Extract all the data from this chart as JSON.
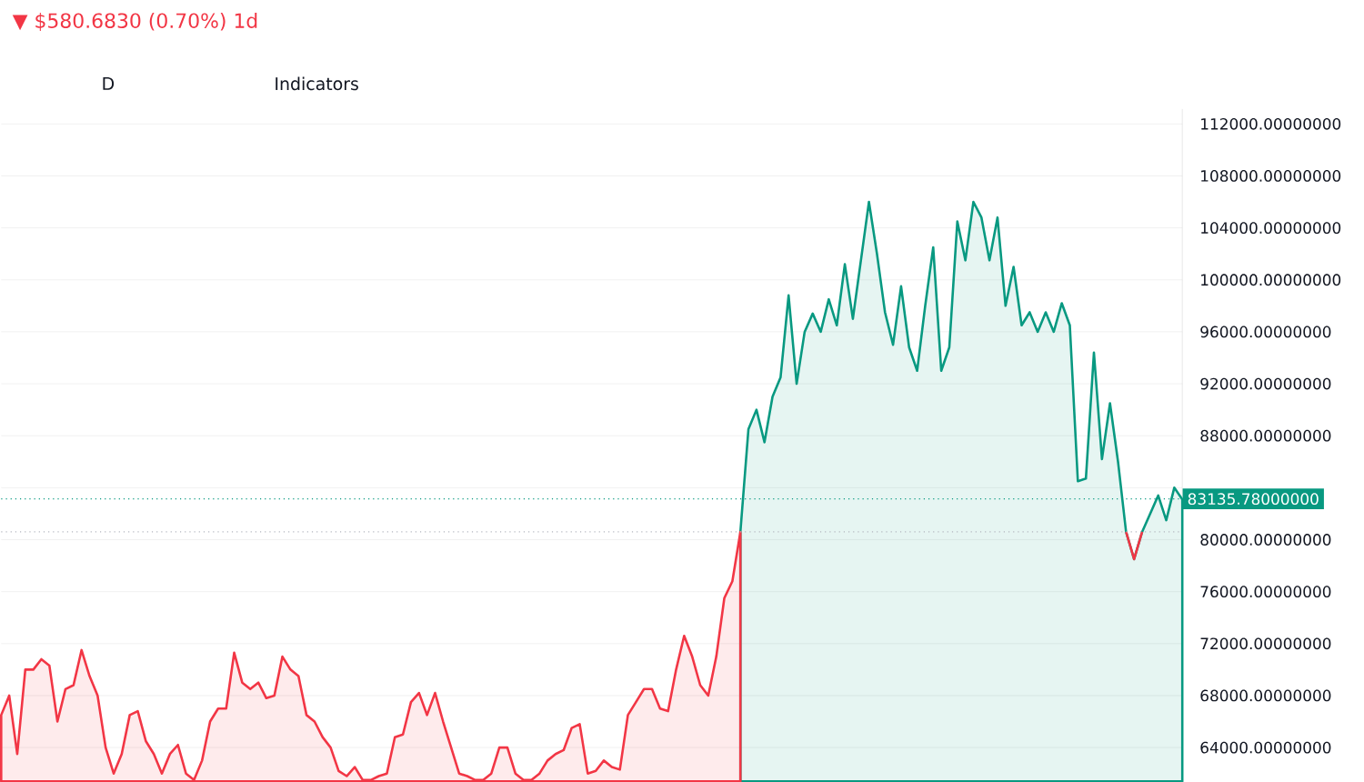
{
  "chart_data": {
    "type": "area",
    "annotations": [
      "▼ $580.6830 (0.70%) 1d",
      "D",
      "Indicators"
    ],
    "categories": [
      null,
      null,
      null,
      null,
      null,
      null,
      null,
      null,
      null,
      null,
      null,
      null,
      null,
      null,
      null,
      null,
      null,
      null,
      null,
      null,
      null,
      null,
      null,
      null,
      null,
      null,
      null,
      null,
      null,
      null,
      null,
      null,
      null,
      null,
      null,
      null,
      null,
      null,
      null,
      null,
      null,
      null,
      null,
      null,
      null,
      null,
      null,
      null,
      null,
      null,
      null,
      null,
      null,
      null,
      null,
      null,
      null,
      null,
      null,
      null,
      null,
      null,
      null,
      null,
      null,
      null,
      null,
      null,
      null,
      null,
      null,
      null,
      null,
      null,
      null,
      null,
      null,
      null,
      null,
      null,
      null,
      null,
      null,
      null,
      null,
      null,
      null,
      null,
      null,
      null,
      null,
      null,
      null,
      null,
      null,
      null,
      null,
      null,
      null,
      null,
      null,
      null,
      null,
      null,
      null,
      null,
      null,
      null,
      null,
      null,
      null,
      null,
      null,
      null,
      null,
      null,
      null,
      null,
      null,
      null,
      null,
      null,
      null,
      null,
      null,
      null,
      null,
      null,
      null,
      null,
      null,
      null,
      null,
      null,
      null,
      null,
      null,
      null,
      null,
      null,
      null,
      null,
      null,
      null,
      null,
      null,
      null,
      null
    ],
    "series": [
      {
        "color": "#f23645",
        "values": [
          66500,
          68000,
          63500,
          70000,
          70000,
          70800,
          70300,
          66000,
          68500,
          68800,
          71500,
          69500,
          68000,
          64000,
          62000,
          63500,
          66500,
          66800,
          64500,
          63500,
          62000,
          63500,
          64200,
          62000,
          61500,
          63000,
          66000,
          67000,
          67000,
          71300,
          69000,
          68500,
          69000,
          67800,
          68000,
          71000,
          70000,
          69500,
          66500,
          66000,
          64800,
          64000,
          62200,
          61800,
          62500,
          61500,
          61500,
          61800,
          62000,
          64800,
          65000,
          67500,
          68200,
          66500,
          68200,
          66000,
          64000,
          62000,
          61800,
          61500,
          61500,
          62000,
          64000,
          64000,
          62000,
          61500,
          61500,
          62000,
          63000,
          63500,
          63800,
          65500,
          65800,
          62000,
          62200,
          63000,
          62500,
          62300,
          66500,
          67500,
          68500,
          68500,
          67000,
          66800,
          70000,
          72600,
          71000,
          68800,
          68000,
          71000,
          75500,
          76800,
          80600,
          null,
          null,
          null,
          null,
          null,
          null,
          null,
          null,
          null,
          null,
          null,
          null,
          null,
          null,
          null,
          null,
          null,
          null,
          null,
          null,
          null,
          null,
          null,
          null,
          null,
          null,
          null,
          null,
          null,
          null,
          null,
          null,
          null,
          null,
          null,
          null,
          null,
          null,
          null,
          null,
          null,
          null,
          null,
          null,
          null,
          null,
          null,
          null,
          null,
          null,
          null,
          null,
          null,
          null,
          null
        ]
      },
      {
        "color": "#089981",
        "values": [
          null,
          null,
          null,
          null,
          null,
          null,
          null,
          null,
          null,
          null,
          null,
          null,
          null,
          null,
          null,
          null,
          null,
          null,
          null,
          null,
          null,
          null,
          null,
          null,
          null,
          null,
          null,
          null,
          null,
          null,
          null,
          null,
          null,
          null,
          null,
          null,
          null,
          null,
          null,
          null,
          null,
          null,
          null,
          null,
          null,
          null,
          null,
          null,
          null,
          null,
          null,
          null,
          null,
          null,
          null,
          null,
          null,
          null,
          null,
          null,
          null,
          null,
          null,
          null,
          null,
          null,
          null,
          null,
          null,
          null,
          null,
          null,
          null,
          null,
          null,
          null,
          null,
          null,
          null,
          null,
          null,
          null,
          null,
          null,
          null,
          null,
          null,
          null,
          null,
          null,
          null,
          null,
          80600,
          88500,
          90000,
          87500,
          91000,
          92500,
          98800,
          92000,
          96000,
          97400,
          96000,
          98500,
          96500,
          101200,
          97000,
          101500,
          106000,
          102000,
          97500,
          95000,
          99500,
          94800,
          93000,
          98000,
          102500,
          93000,
          94800,
          104500,
          101500,
          106000,
          104800,
          101500,
          104800,
          98000,
          101000,
          96500,
          97500,
          96000,
          97500,
          96000,
          98200,
          96500,
          84500,
          84700,
          94400,
          86200,
          90500,
          86000,
          80600,
          78500,
          80600,
          82000,
          83400,
          81500,
          84000,
          83100
        ]
      },
      {
        "type": "line",
        "color": "#f23645",
        "values": [
          null,
          null,
          null,
          null,
          null,
          null,
          null,
          null,
          null,
          null,
          null,
          null,
          null,
          null,
          null,
          null,
          null,
          null,
          null,
          null,
          null,
          null,
          null,
          null,
          null,
          null,
          null,
          null,
          null,
          null,
          null,
          null,
          null,
          null,
          null,
          null,
          null,
          null,
          null,
          null,
          null,
          null,
          null,
          null,
          null,
          null,
          null,
          null,
          null,
          null,
          null,
          null,
          null,
          null,
          null,
          null,
          null,
          null,
          null,
          null,
          null,
          null,
          null,
          null,
          null,
          null,
          null,
          null,
          null,
          null,
          null,
          null,
          null,
          null,
          null,
          null,
          null,
          null,
          null,
          null,
          null,
          null,
          null,
          null,
          null,
          null,
          null,
          null,
          null,
          null,
          null,
          null,
          null,
          null,
          null,
          null,
          null,
          null,
          null,
          null,
          null,
          null,
          null,
          null,
          null,
          null,
          null,
          null,
          null,
          null,
          null,
          null,
          null,
          null,
          null,
          null,
          null,
          null,
          null,
          null,
          null,
          null,
          null,
          null,
          null,
          null,
          null,
          null,
          null,
          null,
          null,
          null,
          null,
          null,
          null,
          null,
          null,
          null,
          null,
          null,
          80600,
          78500,
          80600,
          null,
          null,
          null,
          null,
          null
        ]
      }
    ],
    "ylim": [
      61400,
      113150
    ],
    "yticks": [
      {
        "value": 64000,
        "label": "64000.00000000"
      },
      {
        "value": 68000,
        "label": "68000.00000000"
      },
      {
        "value": 72000,
        "label": "72000.00000000"
      },
      {
        "value": 76000,
        "label": "76000.00000000"
      },
      {
        "value": 80000,
        "label": "80000.00000000"
      },
      {
        "value": 84000,
        "label": null
      },
      {
        "value": 88000,
        "label": "88000.00000000"
      },
      {
        "value": 92000,
        "label": "92000.00000000"
      },
      {
        "value": 96000,
        "label": "96000.00000000"
      },
      {
        "value": 100000,
        "label": "100000.00000000"
      },
      {
        "value": 104000,
        "label": "104000.00000000"
      },
      {
        "value": 108000,
        "label": "108000.00000000"
      },
      {
        "value": 112000,
        "label": "112000.00000000"
      }
    ],
    "grid": "y",
    "ref_lines": [
      {
        "axis": "y",
        "value": 80600,
        "color": "#b2b5be",
        "line_style": "dotted"
      },
      {
        "axis": "y",
        "value": 83135.78,
        "label": "83135.78000000",
        "color": "#089981",
        "line_style": "dotted"
      }
    ]
  }
}
